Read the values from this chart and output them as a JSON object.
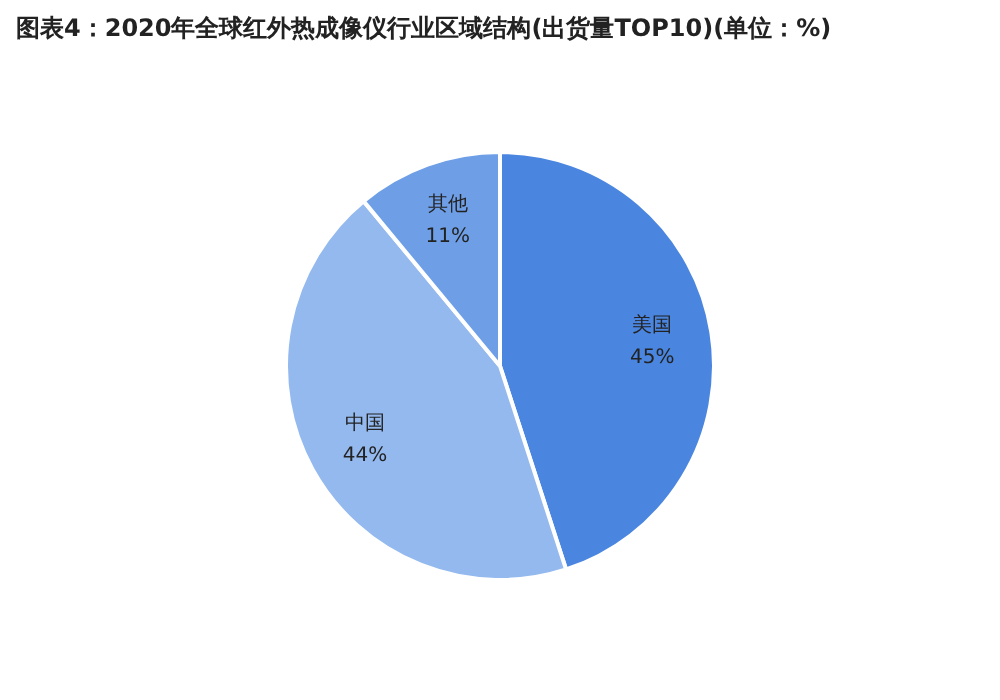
{
  "chart_data": {
    "type": "pie",
    "title": "图表4：2020年全球红外热成像仪行业区域结构(出货量TOP10)(单位：%)",
    "categories": [
      "美国",
      "中国",
      "其他"
    ],
    "values": [
      45,
      44,
      11
    ],
    "value_labels": [
      "45%",
      "44%",
      "11%"
    ],
    "colors": [
      "#4a86e0",
      "#94b9ee",
      "#6e9fe6"
    ],
    "legend": false
  }
}
